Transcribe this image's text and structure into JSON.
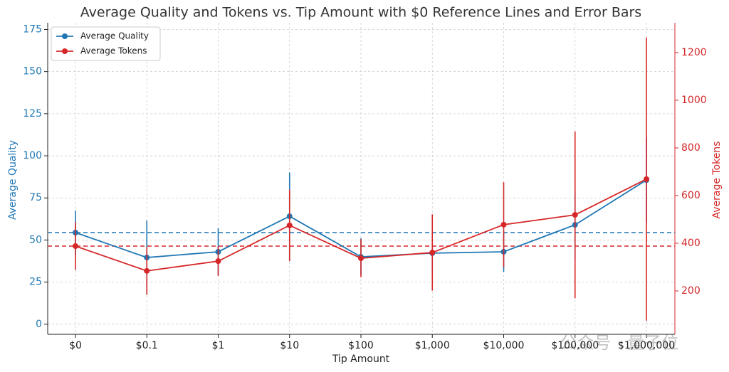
{
  "chart_data": {
    "type": "line",
    "title": "Average Quality and Tokens vs. Tip Amount with $0 Reference Lines and Error Bars",
    "x_label": "Tip Amount",
    "y_label": "Average Quality",
    "y2_label": "Average Tokens",
    "categories": [
      "$0",
      "$0.1",
      "$1",
      "$10",
      "$100",
      "$1,000",
      "$10,000",
      "$100,000",
      "$1,000,000"
    ],
    "series": [
      {
        "name": "Average Quality",
        "color": "#1f77b4",
        "values": [
          54.4,
          39.6,
          43,
          64.1,
          40,
          42.2,
          43,
          59,
          85.6
        ],
        "errors": [
          13,
          22,
          14,
          26,
          11,
          12,
          12,
          20,
          25
        ]
      },
      {
        "name": "Average Tokens",
        "color": "#d62728",
        "axis": "y2",
        "values": [
          388,
          284,
          325,
          475,
          337,
          361,
          478,
          519,
          669
        ],
        "errors": [
          100,
          100,
          62,
          150,
          80,
          160,
          178,
          350,
          594
        ]
      }
    ],
    "ylim": [
      -6,
      179
    ],
    "yticks": [
      0,
      25,
      50,
      75,
      100,
      125,
      150,
      175
    ],
    "y2lim": [
      18,
      1325
    ],
    "y2ticks": [
      200,
      400,
      600,
      800,
      1000,
      1200
    ],
    "grid": true,
    "legend": "upper left",
    "watermark": "公众号 · 量子位"
  }
}
